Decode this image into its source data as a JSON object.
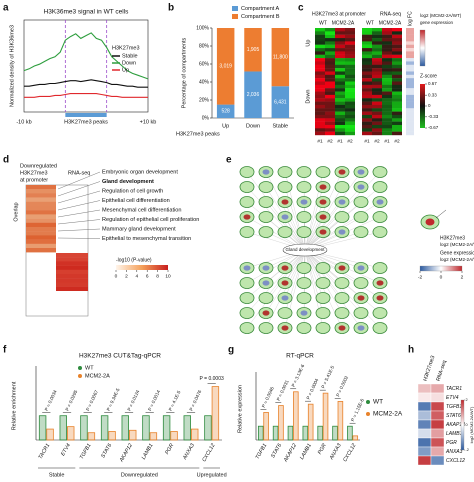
{
  "panels": [
    "a",
    "b",
    "c",
    "d",
    "e",
    "f",
    "g",
    "h"
  ],
  "chart_data": [
    {
      "type": "line",
      "title": "H3K36me3 signal in WT cells",
      "ylabel": "Normalized density of H3K36me3",
      "xlabel": "H3K27me3 peaks",
      "categories": [
        "-10 kb",
        null,
        null,
        null,
        null,
        null,
        null,
        null,
        null,
        null,
        null,
        null,
        null,
        null,
        null,
        null,
        null,
        null,
        null,
        null,
        null,
        null,
        null,
        null,
        "+10 kb"
      ],
      "ylim": [
        0,
        1
      ],
      "legend_title": "H3K27me3",
      "series": [
        {
          "name": "Stable",
          "color": "#111111",
          "values": [
            0.28,
            0.28,
            0.29,
            0.3,
            0.3,
            0.31,
            0.31,
            0.32,
            0.33,
            0.34,
            0.34,
            0.33,
            0.34,
            0.35,
            0.34,
            0.33,
            0.32,
            0.3,
            0.3,
            0.29,
            0.28,
            0.28,
            0.27,
            0.27,
            0.27
          ]
        },
        {
          "name": "Down",
          "color": "#2e9e3e",
          "values": [
            0.45,
            0.47,
            0.5,
            0.52,
            0.55,
            0.58,
            0.6,
            0.65,
            0.78,
            0.82,
            0.85,
            0.8,
            0.83,
            0.86,
            0.8,
            0.78,
            0.7,
            0.6,
            0.55,
            0.5,
            0.45,
            0.42,
            0.4,
            0.38,
            0.36
          ]
        },
        {
          "name": "Up",
          "color": "#e0282d",
          "values": [
            0.16,
            0.16,
            0.16,
            0.17,
            0.17,
            0.17,
            0.18,
            0.18,
            0.19,
            0.2,
            0.2,
            0.2,
            0.2,
            0.2,
            0.2,
            0.19,
            0.18,
            0.17,
            0.17,
            0.16,
            0.16,
            0.16,
            0.16,
            0.16,
            0.16
          ]
        }
      ]
    },
    {
      "type": "stacked_bar",
      "ylabel": "Percentage of compartments",
      "xlabel": "H3K27me3 peaks",
      "categories": [
        "Up",
        "Down",
        "Stable"
      ],
      "ylim": [
        0,
        100
      ],
      "yticks": [
        {
          "value": 0,
          "label": "0%"
        },
        {
          "value": 20,
          "label": "20%"
        },
        {
          "value": 40,
          "label": "40%"
        },
        {
          "value": 60,
          "label": "60%"
        },
        {
          "value": 80,
          "label": "80%"
        },
        {
          "value": 100,
          "label": "100%"
        }
      ],
      "series": [
        {
          "name": "Compartment A",
          "color": "#5b9bd5",
          "values": [
            14.9,
            51.7,
            35.3
          ],
          "bar_labels": [
            "528",
            "2,036",
            "6,431"
          ]
        },
        {
          "name": "Compartment B",
          "color": "#ed7d31",
          "values": [
            85.1,
            48.3,
            64.7
          ],
          "bar_labels": [
            "3,019",
            "1,905",
            "11,800"
          ]
        }
      ]
    },
    {
      "type": "grouped_bar",
      "title": "H3K27me3 CUT&Tag-qPCR",
      "ylabel": "Relative enrichment",
      "ylim": [
        0,
        2.8
      ],
      "groups": [
        {
          "name": "Stable",
          "categories": [
            "TACR1",
            "ETV4"
          ]
        },
        {
          "name": "Downregulated",
          "categories": [
            "TGFB1",
            "STAT6",
            "AKAP12",
            "LAMB1",
            "PGR",
            "ANXA3"
          ]
        },
        {
          "name": "Upregulated",
          "categories": [
            "CXCL12"
          ]
        }
      ],
      "series": [
        {
          "name": "WT",
          "color": "#2e8b3e",
          "values": [
            1,
            1,
            1,
            1,
            1,
            1,
            1,
            1,
            1
          ]
        },
        {
          "name": "MCM2-2A",
          "color": "#e8822a",
          "values": [
            0.45,
            0.55,
            0.3,
            0.35,
            0.4,
            0.3,
            0.35,
            0.45,
            2.2
          ]
        }
      ],
      "p_values": [
        "P = 0.0034",
        "P = 0.0295",
        "P = 0.0067",
        "P = 9.34E-5",
        "P = 0.0124",
        "P = 0.0014",
        "P = 4.1E-5",
        "P = 0.0476",
        "P = 0.0003"
      ]
    },
    {
      "type": "grouped_bar",
      "title": "RT-qPCR",
      "ylabel": "Relative expression",
      "ylim": [
        0,
        4.5
      ],
      "groups": [
        {
          "name": null,
          "categories": [
            "TGFB1",
            "STAT6",
            "AKAP12",
            "LAMB1",
            "PGR",
            "ANXA3",
            "CXCL12"
          ]
        }
      ],
      "series": [
        {
          "name": "WT",
          "color": "#2e8b3e",
          "values": [
            1,
            1,
            1,
            1,
            1,
            1,
            1
          ]
        },
        {
          "name": "MCM2-2A",
          "color": "#e8822a",
          "values": [
            2.0,
            2.5,
            3.5,
            2.6,
            3.4,
            2.8,
            0.3
          ]
        }
      ],
      "p_values": [
        "P = 0.0046",
        "P = 0.0031",
        "P = 3.13E-6",
        "P = 0.0004",
        "P = 5.41E-5",
        "P = 0.0002",
        "P = 1.15E-6"
      ]
    },
    {
      "type": "heatmap",
      "columns": [
        "H3K27me3",
        "RNA-seq"
      ],
      "rows": [
        "TACR1",
        "ETV4",
        "TGFB1",
        "STAT6",
        "AKAP12",
        "LAMB1",
        "PGR",
        "ANXA3",
        "CXCL12"
      ],
      "values": [
        [
          0.6,
          0.8
        ],
        [
          0.2,
          0.3
        ],
        [
          -1.6,
          1.7
        ],
        [
          -0.8,
          1.5
        ],
        [
          -1.5,
          1.8
        ],
        [
          -0.4,
          0.9
        ],
        [
          -1.7,
          1.6
        ],
        [
          -1.2,
          0.8
        ],
        [
          1.8,
          -1.4
        ]
      ],
      "zlim": [
        -2,
        2
      ],
      "zticks": [
        -2,
        0,
        2
      ],
      "colorbar_label": "log2 (MCM2-2A/WT)"
    }
  ],
  "panel_c": {
    "h3k27me3": "H3K27me3 at promoter",
    "rnaseq": "RNA-seq",
    "conditions": [
      "WT",
      "MCM2-2A"
    ],
    "rows": [
      "Up",
      "Down"
    ],
    "replicates": [
      "#1",
      "#2",
      "#1",
      "#2"
    ],
    "logfc": "log FC",
    "expression_caption": [
      "log2 (MCM2-2A/WT)",
      "gene expression"
    ],
    "zscore": "Z-score",
    "zticks": [
      0.67,
      0.33,
      0,
      -0.33,
      -0.67
    ],
    "zlim": [
      -0.67,
      0.67
    ]
  },
  "panel_d": {
    "headers": [
      "Downregulated",
      "H3K27me3",
      "at promoter"
    ],
    "rnaseq": "RNA-seq",
    "overlap": "Overlap",
    "terms": [
      "Embryonic organ development",
      "Gland development",
      "Regulation of cell growth",
      "Epithelial cell differentiation",
      "Mesenchymal cell differentiation",
      "Regulation of epithelial cell proliferation",
      "Mammary gland development",
      "Epithelial to mesenchymal transition"
    ],
    "colorbar_label": "-log10 (P-value)",
    "ticks": [
      0,
      2,
      4,
      6,
      8,
      10
    ],
    "lim": [
      0,
      10
    ]
  },
  "panel_e": {
    "center": "Gland development",
    "h3k27me3": "H3K27me3",
    "h3k27me3_scale": "log2 (MCM2-2A/WT)",
    "expression": "Gene expression",
    "expression_scale": "log2 (MCM2-2A/WT)",
    "ticks": [
      -2,
      0,
      2
    ],
    "lim": [
      -2,
      2
    ]
  }
}
